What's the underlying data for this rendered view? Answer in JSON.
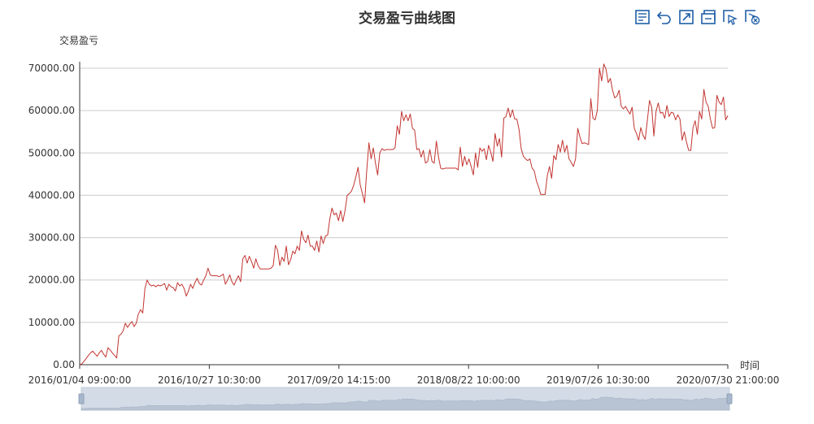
{
  "toolbox": {
    "icons": [
      "data-view-icon",
      "restore-icon",
      "zoom-icon",
      "zoom-reset-icon",
      "select-icon",
      "clear-select-icon"
    ]
  },
  "colors": {
    "line": "#c23531",
    "grid": "#cccccc",
    "axis": "#333333",
    "slider": "#d2dbe6",
    "slider_handle": "#a7b7cc"
  },
  "chart_data": {
    "type": "line",
    "title": "交易盈亏曲线图",
    "ylabel": "交易盈亏",
    "xlabel": "时间",
    "ylim": [
      0,
      70000
    ],
    "ytick_labels": [
      "0.00",
      "10000.00",
      "20000.00",
      "30000.00",
      "40000.00",
      "50000.00",
      "60000.00",
      "70000.00"
    ],
    "xtick_labels": [
      "2016/01/04 09:00:00",
      "2016/10/27 10:30:00",
      "2017/09/20 14:15:00",
      "2018/08/22 10:00:00",
      "2019/07/26 10:30:00",
      "2020/07/30 21:00:00"
    ],
    "grid": true,
    "datazoom_slider": true,
    "series": [
      {
        "values": [
          0,
          200,
          800,
          1500,
          2200,
          2800,
          3200,
          2600,
          2000,
          2800,
          3400,
          2500,
          1800,
          4000,
          3500,
          2800,
          2200,
          1600,
          6800,
          7200,
          8000,
          9800,
          8800,
          9600,
          10200,
          9000,
          9800,
          12000,
          13000,
          12200,
          18000,
          20000,
          19000,
          18600,
          18800,
          18400,
          18800,
          18600,
          18800,
          19200,
          17600,
          19000,
          18400,
          18200,
          17400,
          19400,
          18600,
          19000,
          18000,
          16200,
          17400,
          19000,
          18000,
          19400,
          20400,
          19200,
          18800,
          20000,
          21000,
          22800,
          21200,
          21000,
          21000,
          21000,
          20800,
          21000,
          21400,
          19000,
          20000,
          21200,
          19600,
          18800,
          20000,
          21000,
          19600,
          25000,
          25800,
          24000,
          25600,
          24400,
          22800,
          25000,
          23400,
          22600,
          22600,
          22600,
          22600,
          22600,
          22800,
          23400,
          28200,
          27000,
          23400,
          25400,
          24400,
          28000,
          23600,
          24800,
          26800,
          26200,
          28000,
          27000,
          31600,
          29600,
          28800,
          30600,
          28000,
          28000,
          27000,
          29200,
          26600,
          30400,
          28600,
          30400,
          30600,
          34400,
          37000,
          35400,
          35800,
          34000,
          36400,
          33800,
          36400,
          40000,
          40400,
          41000,
          42400,
          44400,
          46600,
          42400,
          40400,
          38200,
          46000,
          52400,
          48600,
          51200,
          47600,
          44800,
          50000,
          51000,
          50600,
          50800,
          50800,
          50800,
          50800,
          51200,
          56400,
          54400,
          59800,
          57600,
          59000,
          57600,
          59200,
          55800,
          55400,
          50800,
          51000,
          49000,
          50600,
          47600,
          48000,
          50800,
          48000,
          47600,
          52800,
          49000,
          46400,
          46200,
          46400,
          46400,
          46400,
          46400,
          46400,
          46400,
          46000,
          51400,
          46800,
          49200,
          47200,
          48600,
          46800,
          44800,
          50000,
          46600,
          51200,
          50400,
          51000,
          48400,
          51800,
          50200,
          48000,
          54600,
          51600,
          53400,
          49000,
          58200,
          58600,
          60600,
          58400,
          60200,
          58000,
          58000,
          55600,
          51000,
          49200,
          48600,
          48200,
          48600,
          46400,
          45800,
          43400,
          42000,
          40200,
          40200,
          40200,
          44600,
          46800,
          44000,
          49400,
          48400,
          52000,
          50200,
          53000,
          50200,
          51800,
          48600,
          47800,
          46800,
          48600,
          55800,
          53800,
          52200,
          52400,
          52200,
          52000,
          62800,
          58200,
          57800,
          60000,
          70000,
          67000,
          71000,
          69800,
          66600,
          67600,
          64800,
          63000,
          63400,
          64800,
          61000,
          60400,
          61000,
          60000,
          59200,
          60800,
          55800,
          54600,
          53000,
          56000,
          54200,
          53200,
          57600,
          62400,
          60800,
          54000,
          59800,
          61800,
          59400,
          59600,
          58200,
          61200,
          58600,
          59600,
          59400,
          57800,
          59000,
          58000,
          53000,
          55000,
          52600,
          50600,
          50600,
          56000,
          57600,
          54400,
          59800,
          58000,
          65000,
          62000,
          61000,
          58000,
          55800,
          56000,
          63600,
          62000,
          61400,
          63200,
          57800,
          58800
        ]
      }
    ]
  }
}
